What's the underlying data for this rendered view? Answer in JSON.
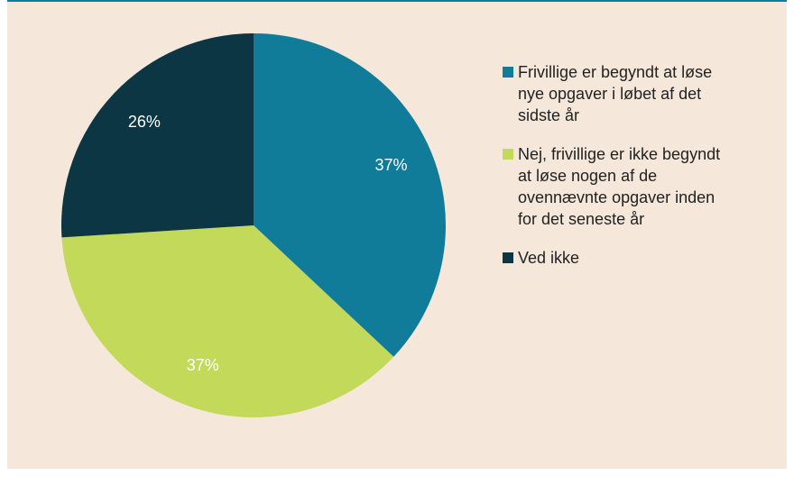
{
  "chart_data": {
    "type": "pie",
    "categories": [
      "Frivillige er begyndt at løse nye opgaver i løbet af det sidste år",
      "Nej, frivillige er ikke begyndt at løse nogen af de ovennævnte opgaver inden for det seneste år",
      "Ved ikke"
    ],
    "values": [
      37,
      37,
      26
    ],
    "value_labels": [
      "37%",
      "37%",
      "26%"
    ],
    "colors": [
      "#117c99",
      "#c2d95a",
      "#0c3644"
    ],
    "legend": "right"
  }
}
